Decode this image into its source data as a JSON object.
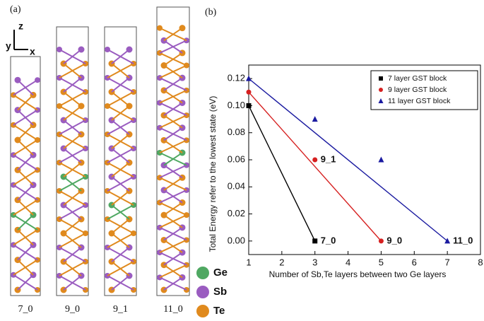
{
  "panel_a": {
    "label": "(a)",
    "axis_labels": [
      "z",
      "y",
      "x"
    ],
    "structures": [
      "7_0",
      "9_0",
      "9_1",
      "11_0"
    ],
    "legend": [
      "Ge",
      "Sb",
      "Te"
    ]
  },
  "chart_data": {
    "type": "scatter",
    "panel_label": "(b)",
    "xlabel": "Number of Sb,Te layers between two Ge layers",
    "ylabel": "Total Energy refer to the lowest state (eV)",
    "xlim": [
      1,
      8
    ],
    "xticks": [
      1,
      2,
      3,
      4,
      5,
      6,
      7,
      8
    ],
    "ylim": [
      -0.01,
      0.13
    ],
    "yticks": [
      {
        "value": 0,
        "label": "0.00"
      },
      {
        "value": 0.02,
        "label": "0.02"
      },
      {
        "value": 0.04,
        "label": "0.04"
      },
      {
        "value": 0.06,
        "label": "0.06"
      },
      {
        "value": 0.08,
        "label": "0.08"
      },
      {
        "value": 0.1,
        "label": "0.10"
      },
      {
        "value": 0.12,
        "label": "0.12"
      }
    ],
    "fit_line": true,
    "legend": "upper right",
    "series": [
      {
        "name": "7 layer GST block",
        "color": "#000000",
        "marker": "square",
        "x": [
          1,
          3
        ],
        "values": [
          0.1,
          0
        ],
        "labels": [
          null,
          "7_0"
        ]
      },
      {
        "name": "9 layer GST block",
        "color": "#d62020",
        "marker": "circle",
        "x": [
          1,
          3,
          5
        ],
        "values": [
          0.11,
          0.06,
          0
        ],
        "labels": [
          null,
          "9_1",
          "9_0"
        ]
      },
      {
        "name": "11 layer GST block",
        "color": "#1a1aa0",
        "marker": "triangle",
        "x": [
          1,
          3,
          5,
          7
        ],
        "values": [
          0.12,
          0.09,
          0.06,
          0
        ],
        "labels": [
          null,
          null,
          null,
          "11_0"
        ]
      }
    ]
  }
}
